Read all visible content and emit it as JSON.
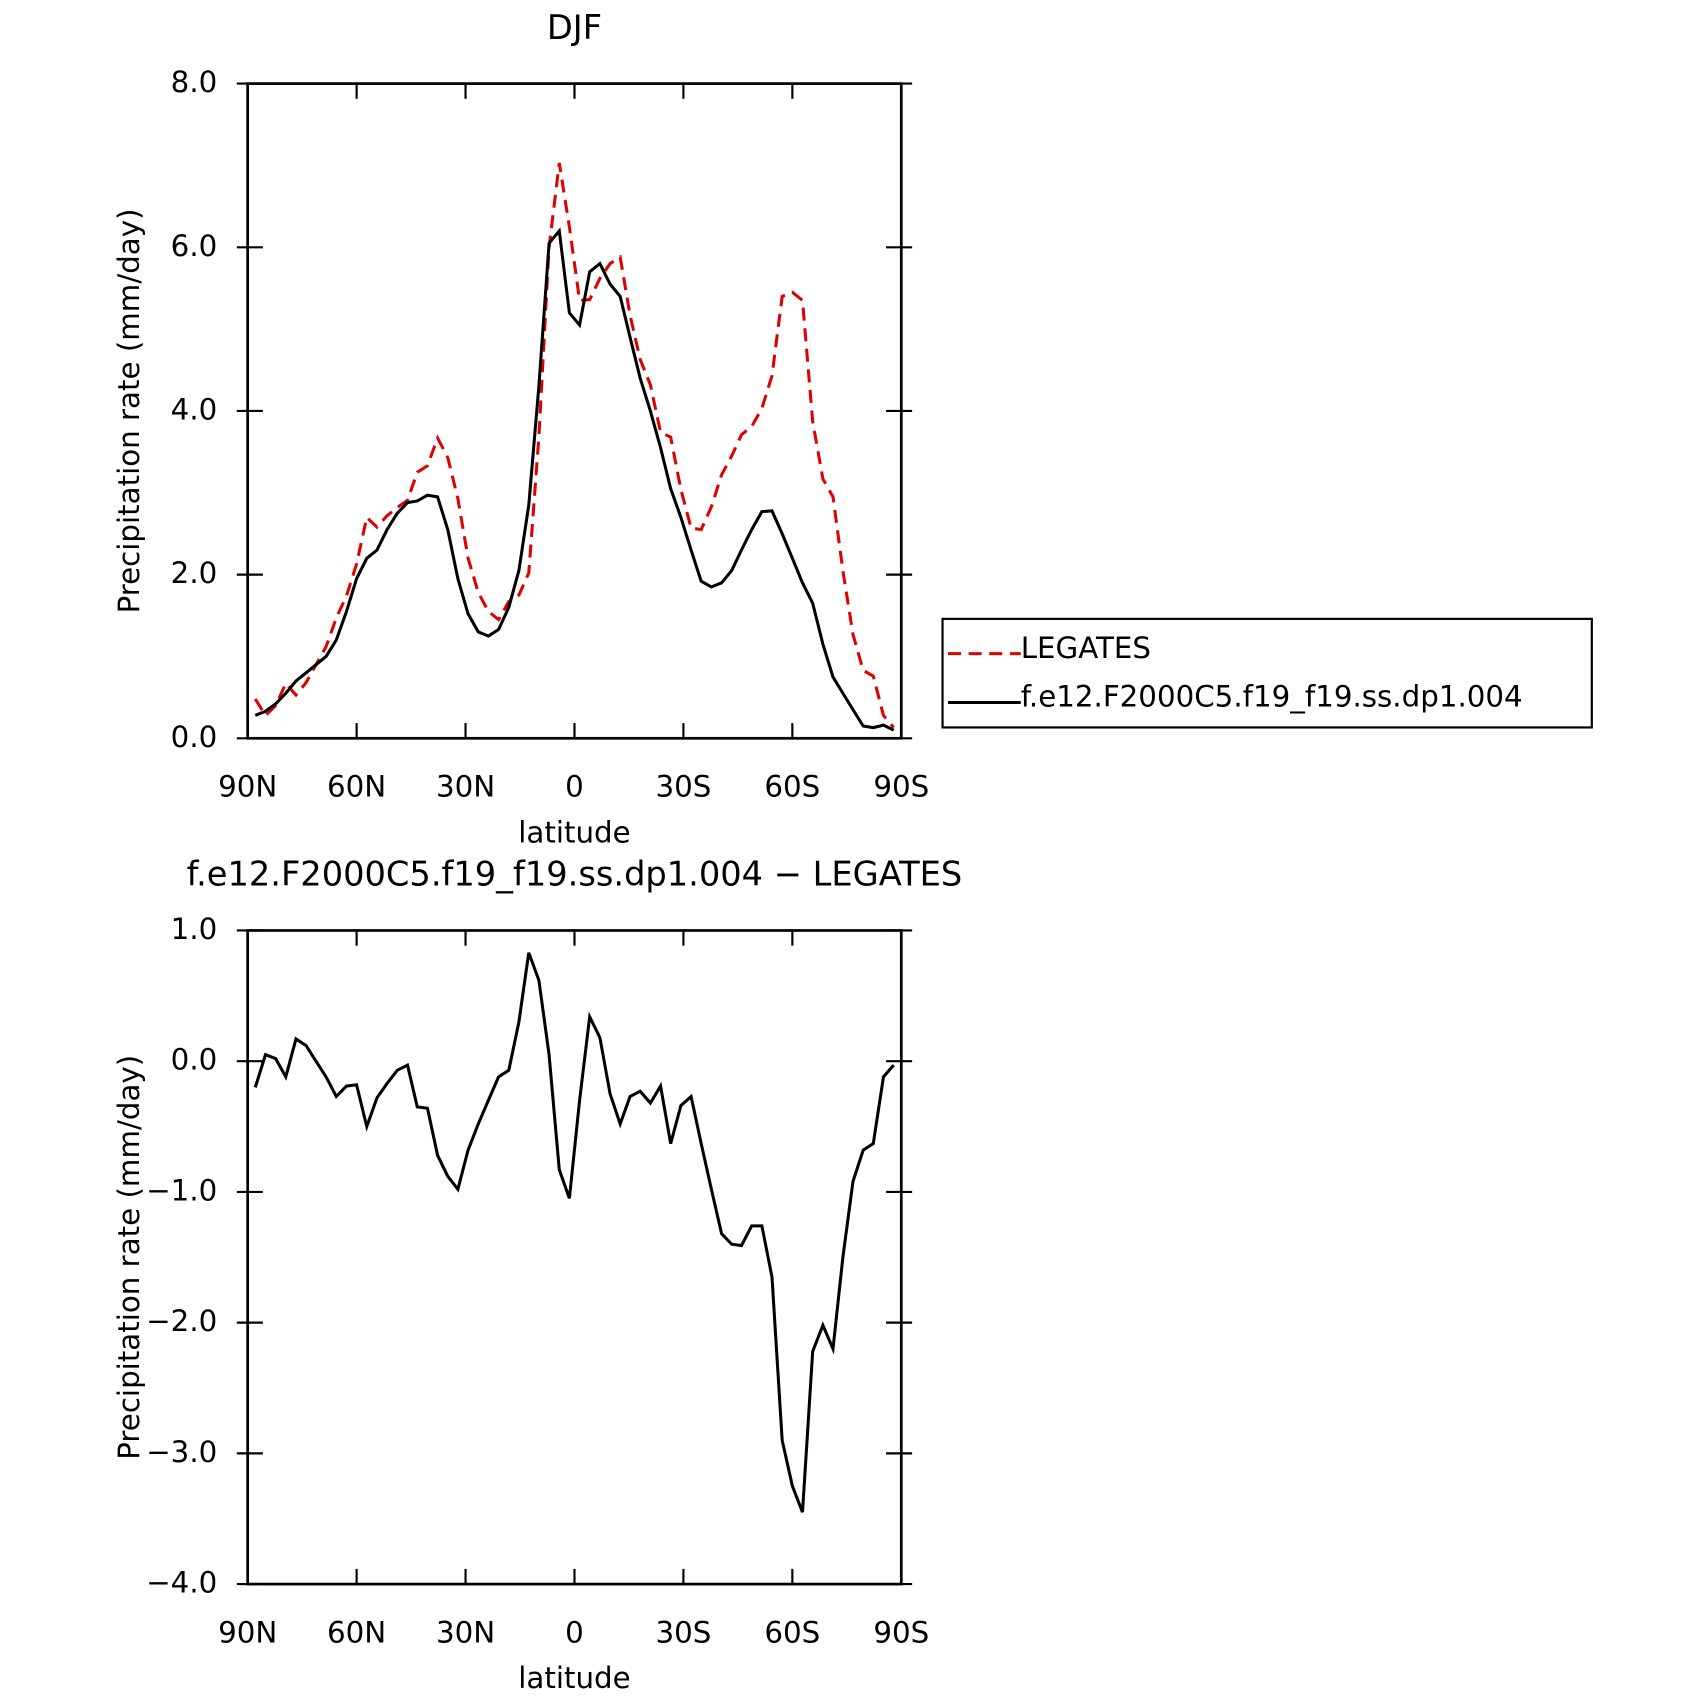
{
  "chart_data": [
    {
      "type": "line",
      "title": "DJF",
      "xlabel": "latitude",
      "ylabel": "Precipitation rate (mm/day)",
      "x": [
        87.9,
        85.1,
        82.3,
        79.5,
        76.7,
        73.9,
        71.2,
        68.4,
        65.6,
        62.8,
        60.0,
        57.2,
        54.4,
        51.6,
        48.8,
        46.0,
        43.3,
        40.5,
        37.7,
        34.9,
        32.1,
        29.3,
        26.5,
        23.7,
        20.9,
        18.1,
        15.3,
        12.6,
        9.8,
        7.0,
        4.2,
        1.4,
        -1.4,
        -4.2,
        -7.0,
        -9.8,
        -12.6,
        -15.3,
        -18.1,
        -20.9,
        -23.7,
        -26.5,
        -29.3,
        -32.1,
        -34.9,
        -37.7,
        -40.5,
        -43.3,
        -46.0,
        -48.8,
        -51.6,
        -54.4,
        -57.2,
        -60.0,
        -62.8,
        -65.6,
        -68.4,
        -71.2,
        -73.9,
        -76.7,
        -79.5,
        -82.3,
        -85.1,
        -87.9
      ],
      "series": [
        {
          "name": "LEGATES",
          "color": "#e00000",
          "dash": true,
          "values": [
            0.48,
            0.28,
            0.4,
            0.67,
            0.53,
            0.68,
            0.9,
            1.12,
            1.47,
            1.74,
            2.13,
            2.7,
            2.58,
            2.72,
            2.82,
            2.91,
            3.25,
            3.33,
            3.67,
            3.43,
            2.93,
            2.2,
            1.78,
            1.55,
            1.45,
            1.67,
            1.75,
            2.02,
            3.68,
            6.0,
            7.03,
            6.25,
            5.35,
            5.36,
            5.62,
            5.8,
            5.88,
            5.17,
            4.63,
            4.32,
            3.74,
            3.68,
            3.04,
            2.57,
            2.55,
            2.83,
            3.22,
            3.45,
            3.71,
            3.81,
            4.03,
            4.43,
            5.4,
            5.45,
            5.35,
            3.87,
            3.17,
            2.95,
            2.05,
            1.27,
            0.83,
            0.76,
            0.28,
            0.13
          ]
        },
        {
          "name": "f.e12.F2000C5.f19_f19.ss.dp1.004",
          "color": "#000000",
          "dash": false,
          "values": [
            0.28,
            0.33,
            0.42,
            0.55,
            0.7,
            0.8,
            0.9,
            1.0,
            1.2,
            1.55,
            1.95,
            2.2,
            2.3,
            2.55,
            2.75,
            2.88,
            2.9,
            2.97,
            2.95,
            2.55,
            1.95,
            1.52,
            1.3,
            1.25,
            1.33,
            1.6,
            2.05,
            2.85,
            4.3,
            6.05,
            6.2,
            5.2,
            5.05,
            5.7,
            5.8,
            5.55,
            5.4,
            4.9,
            4.4,
            4.0,
            3.55,
            3.05,
            2.7,
            2.3,
            1.92,
            1.85,
            1.9,
            2.05,
            2.3,
            2.55,
            2.77,
            2.78,
            2.5,
            2.2,
            1.9,
            1.65,
            1.15,
            0.75,
            0.55,
            0.35,
            0.15,
            0.13,
            0.16,
            0.1
          ]
        }
      ],
      "xlim": [
        90,
        -90
      ],
      "xticks": [
        {
          "value": 90,
          "label": "90N"
        },
        {
          "value": 60,
          "label": "60N"
        },
        {
          "value": 30,
          "label": "30N"
        },
        0,
        {
          "value": -30,
          "label": "30S"
        },
        {
          "value": -60,
          "label": "60S"
        },
        {
          "value": -90,
          "label": "90S"
        }
      ],
      "ylim": [
        0,
        8
      ],
      "yticks": [
        {
          "value": 0,
          "label": "0.0"
        },
        {
          "value": 2,
          "label": "2.0"
        },
        {
          "value": 4,
          "label": "4.0"
        },
        {
          "value": 6,
          "label": "6.0"
        },
        {
          "value": 8,
          "label": "8.0"
        }
      ],
      "legend": "outside-right"
    },
    {
      "type": "line",
      "title": "f.e12.F2000C5.f19_f19.ss.dp1.004 − LEGATES",
      "xlabel": "latitude",
      "ylabel": "Precipitation rate (mm/day)",
      "x": [
        87.9,
        85.1,
        82.3,
        79.5,
        76.7,
        73.9,
        71.2,
        68.4,
        65.6,
        62.8,
        60.0,
        57.2,
        54.4,
        51.6,
        48.8,
        46.0,
        43.3,
        40.5,
        37.7,
        34.9,
        32.1,
        29.3,
        26.5,
        23.7,
        20.9,
        18.1,
        15.3,
        12.6,
        9.8,
        7.0,
        4.2,
        1.4,
        -1.4,
        -4.2,
        -7.0,
        -9.8,
        -12.6,
        -15.3,
        -18.1,
        -20.9,
        -23.7,
        -26.5,
        -29.3,
        -32.1,
        -34.9,
        -37.7,
        -40.5,
        -43.3,
        -46.0,
        -48.8,
        -51.6,
        -54.4,
        -57.2,
        -60.0,
        -62.8,
        -65.6,
        -68.4,
        -71.2,
        -73.9,
        -76.7,
        -79.5,
        -82.3,
        -85.1,
        -87.9
      ],
      "series": [
        {
          "color": "#000000",
          "dash": false,
          "values": [
            -0.2,
            0.05,
            0.02,
            -0.12,
            0.17,
            0.12,
            0.0,
            -0.12,
            -0.27,
            -0.19,
            -0.18,
            -0.5,
            -0.28,
            -0.17,
            -0.07,
            -0.03,
            -0.35,
            -0.36,
            -0.72,
            -0.88,
            -0.98,
            -0.68,
            -0.48,
            -0.3,
            -0.12,
            -0.07,
            0.3,
            0.83,
            0.62,
            0.05,
            -0.83,
            -1.05,
            -0.3,
            0.34,
            0.18,
            -0.25,
            -0.48,
            -0.27,
            -0.23,
            -0.32,
            -0.19,
            -0.63,
            -0.34,
            -0.27,
            -0.63,
            -0.98,
            -1.32,
            -1.4,
            -1.41,
            -1.26,
            -1.26,
            -1.65,
            -2.9,
            -3.25,
            -3.45,
            -2.22,
            -2.02,
            -2.2,
            -1.5,
            -0.92,
            -0.68,
            -0.63,
            -0.12,
            -0.03
          ]
        }
      ],
      "xlim": [
        90,
        -90
      ],
      "xticks": [
        {
          "value": 90,
          "label": "90N"
        },
        {
          "value": 60,
          "label": "60N"
        },
        {
          "value": 30,
          "label": "30N"
        },
        0,
        {
          "value": -30,
          "label": "30S"
        },
        {
          "value": -60,
          "label": "60S"
        },
        {
          "value": -90,
          "label": "90S"
        }
      ],
      "ylim": [
        -4,
        1
      ],
      "yticks": [
        {
          "value": -4,
          "label": "−4.0"
        },
        {
          "value": -3,
          "label": "−3.0"
        },
        {
          "value": -2,
          "label": "−2.0"
        },
        {
          "value": -1,
          "label": "−1.0"
        },
        {
          "value": 0,
          "label": "0.0"
        },
        {
          "value": 1,
          "label": "1.0"
        }
      ]
    }
  ]
}
